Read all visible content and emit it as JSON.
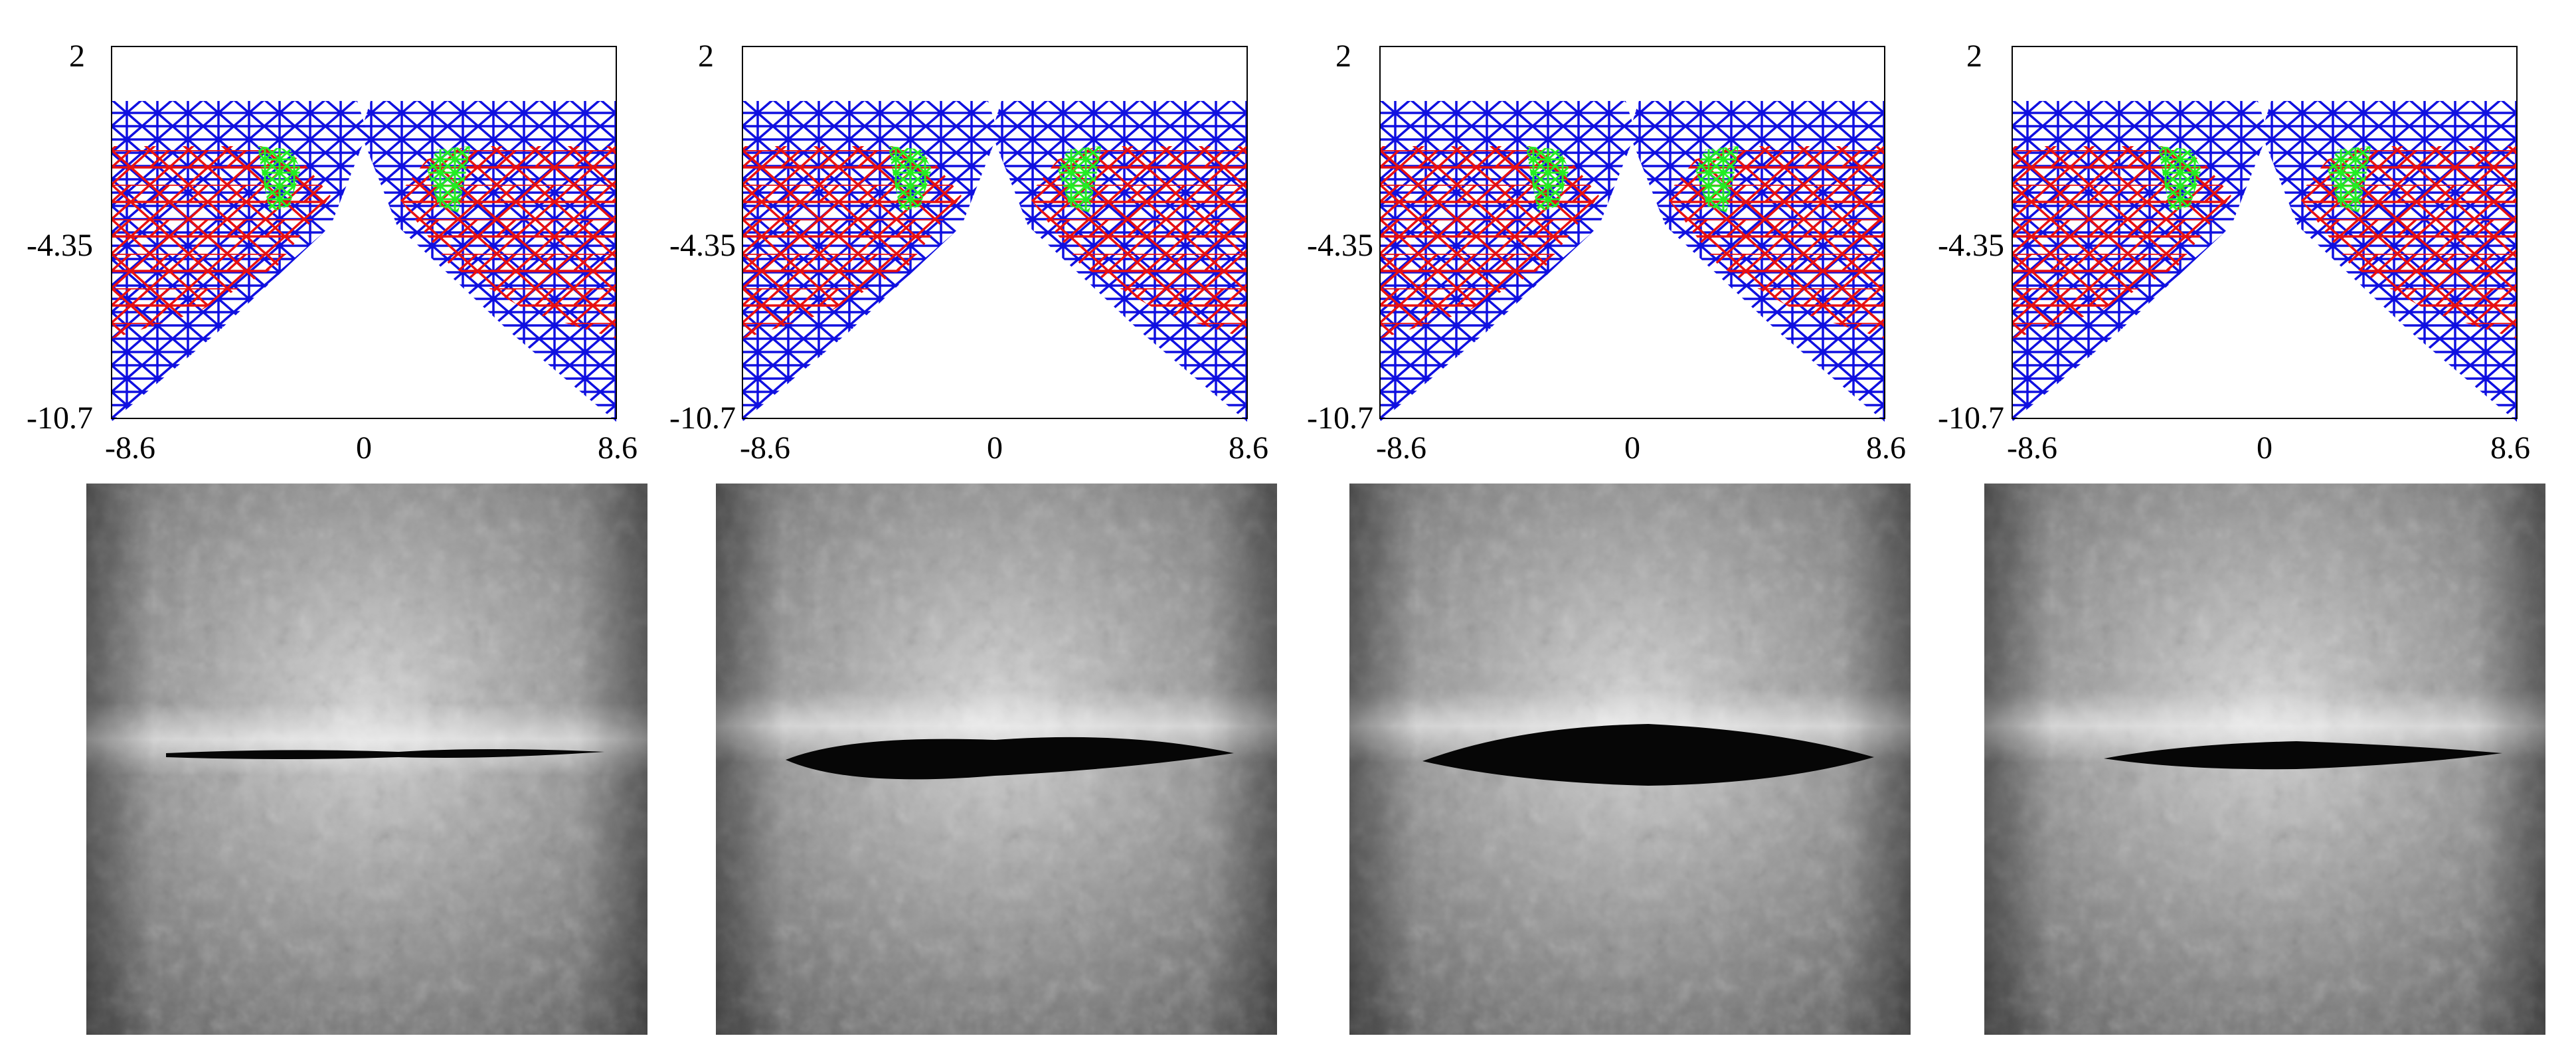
{
  "figure": {
    "panels": [
      {
        "id": "p1",
        "y_ticks": [
          "2",
          "-4.35",
          "-10.7"
        ],
        "x_ticks": [
          "-8.6",
          "0",
          "8.6"
        ],
        "gap": "thin"
      },
      {
        "id": "p2",
        "y_ticks": [
          "2",
          "-4.35",
          "-10.7"
        ],
        "x_ticks": [
          "-8.6",
          "0",
          "8.6"
        ],
        "gap": "wide"
      },
      {
        "id": "p3",
        "y_ticks": [
          "2",
          "-4.35",
          "-10.7"
        ],
        "x_ticks": [
          "-8.6",
          "0",
          "8.6"
        ],
        "gap": "widest"
      },
      {
        "id": "p4",
        "y_ticks": [
          "2",
          "-4.35",
          "-10.7"
        ],
        "x_ticks": [
          "-8.6",
          "0",
          "8.6"
        ],
        "gap": "medium"
      }
    ],
    "colors": {
      "outer_mesh": "#1010e0",
      "inner_mesh": "#e81010",
      "core_mesh": "#22ee22",
      "slit": "#060606"
    },
    "photos": [
      {
        "id": "photo-1",
        "opening": "thin"
      },
      {
        "id": "photo-2",
        "opening": "wide"
      },
      {
        "id": "photo-3",
        "opening": "widest"
      },
      {
        "id": "photo-4",
        "opening": "medium"
      }
    ]
  }
}
